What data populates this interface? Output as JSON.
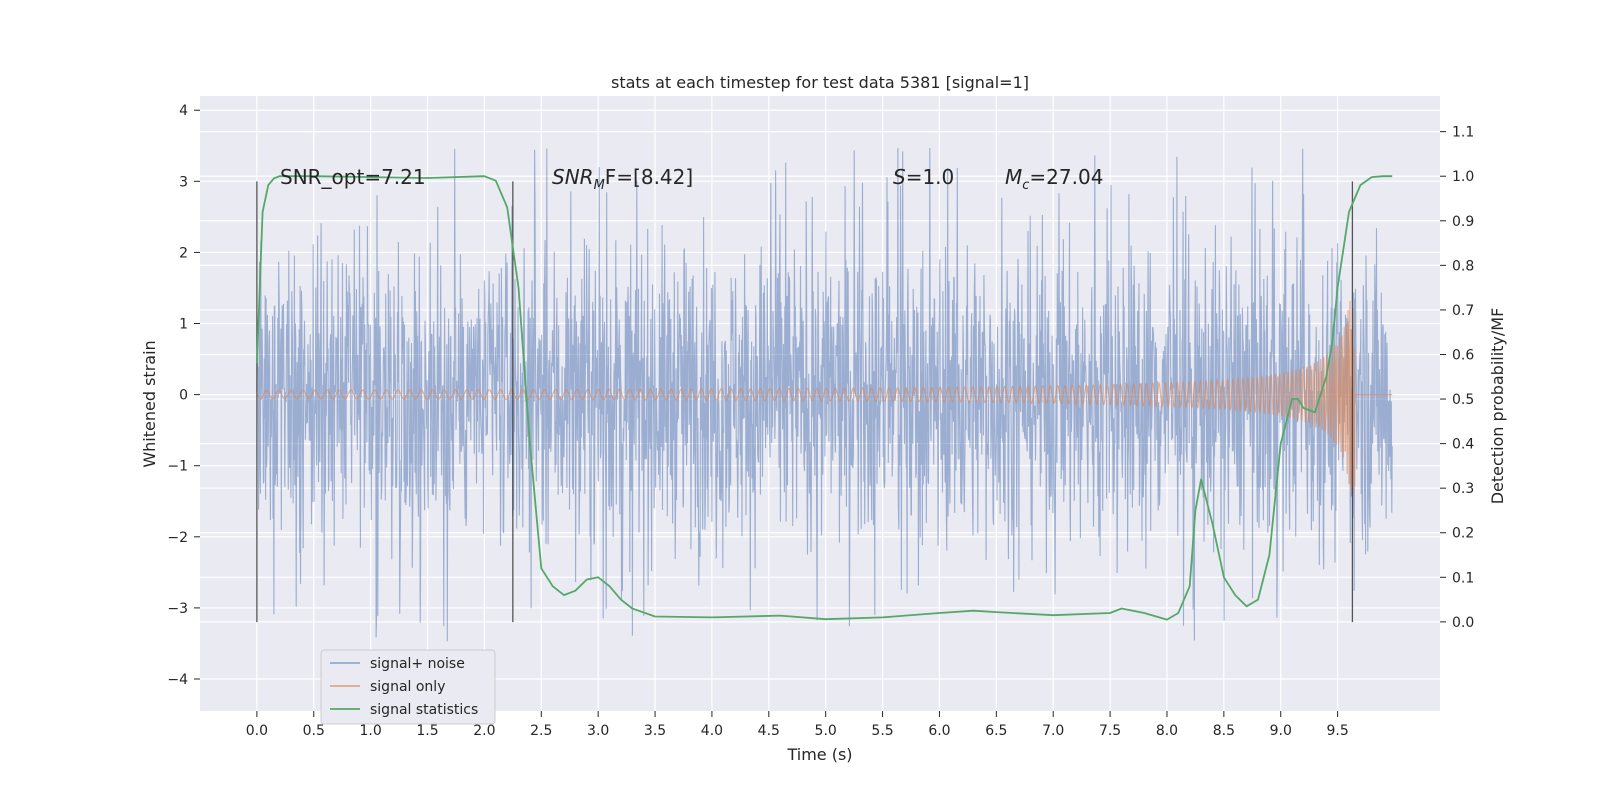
{
  "chart_data": {
    "type": "line",
    "title": "stats at each timestep for test data 5381 [signal=1]",
    "xlabel": "Time (s)",
    "ylabel_left": "Whitened strain",
    "ylabel_right": "Detection probability/MF",
    "xlim": [
      -0.5,
      10.4
    ],
    "ylim_left": [
      -4.45,
      4.2
    ],
    "ylim_right": [
      -0.2,
      1.18
    ],
    "grid": true,
    "legend_position": "lower-left",
    "x_ticks": [
      "0.0",
      "0.5",
      "1.0",
      "1.5",
      "2.0",
      "2.5",
      "3.0",
      "3.5",
      "4.0",
      "4.5",
      "5.0",
      "5.5",
      "6.0",
      "6.5",
      "7.0",
      "7.5",
      "8.0",
      "8.5",
      "9.0",
      "9.5"
    ],
    "y_ticks_left": [
      "−4",
      "−3",
      "−2",
      "−1",
      "0",
      "1",
      "2",
      "3",
      "4"
    ],
    "y_ticks_right": [
      "0.0",
      "0.1",
      "0.2",
      "0.3",
      "0.4",
      "0.5",
      "0.6",
      "0.7",
      "0.8",
      "0.9",
      "1.0",
      "1.1"
    ],
    "annotations": {
      "snr_opt": "SNR_opt=7.21",
      "snr_mf_base": "SNR",
      "snr_mf_sub": "M",
      "snr_mf_rest": "F=[8.42]",
      "s_text": "=1.0",
      "s_letter": "S",
      "mc_letter": "M",
      "mc_sub": "c",
      "mc_rest": "=27.04"
    },
    "markers_x": [
      0.0,
      2.25,
      9.63
    ],
    "series": [
      {
        "name": "signal+ noise",
        "color": "#4c72b0",
        "opacity": 0.5,
        "x_range": [
          0.0,
          9.98
        ],
        "band_typical": [
          -2.0,
          2.0
        ],
        "peaks_max": 3.8,
        "peaks_min": -3.6
      },
      {
        "name": "signal only",
        "color": "#dd8452",
        "opacity": 0.6,
        "x_range": [
          0.0,
          9.98
        ],
        "chirp_end": 9.65,
        "max_amplitude": 1.5
      },
      {
        "name": "signal statistics",
        "color": "#55a868",
        "axis": "right",
        "x": [
          0.0,
          0.05,
          0.1,
          0.15,
          0.2,
          0.3,
          0.5,
          1.0,
          1.5,
          2.0,
          2.1,
          2.2,
          2.3,
          2.4,
          2.5,
          2.55,
          2.6,
          2.65,
          2.7,
          2.8,
          2.9,
          3.0,
          3.1,
          3.2,
          3.3,
          3.5,
          4.0,
          4.6,
          5.0,
          5.5,
          6.0,
          6.3,
          6.5,
          7.0,
          7.5,
          7.6,
          7.8,
          8.0,
          8.1,
          8.2,
          8.25,
          8.3,
          8.4,
          8.5,
          8.6,
          8.7,
          8.8,
          8.9,
          9.0,
          9.1,
          9.15,
          9.2,
          9.3,
          9.4,
          9.45,
          9.5,
          9.6,
          9.7,
          9.8,
          9.9,
          9.98
        ],
        "values": [
          0.58,
          0.92,
          0.98,
          0.995,
          1.0,
          1.0,
          1.0,
          0.998,
          0.996,
          1.0,
          0.99,
          0.93,
          0.75,
          0.4,
          0.12,
          0.1,
          0.08,
          0.07,
          0.06,
          0.07,
          0.095,
          0.1,
          0.08,
          0.05,
          0.03,
          0.012,
          0.01,
          0.014,
          0.006,
          0.01,
          0.02,
          0.025,
          0.022,
          0.015,
          0.02,
          0.03,
          0.02,
          0.005,
          0.02,
          0.08,
          0.25,
          0.32,
          0.22,
          0.1,
          0.06,
          0.035,
          0.05,
          0.15,
          0.4,
          0.5,
          0.5,
          0.48,
          0.47,
          0.55,
          0.62,
          0.75,
          0.92,
          0.98,
          0.998,
          1.0,
          1.0
        ]
      }
    ]
  }
}
